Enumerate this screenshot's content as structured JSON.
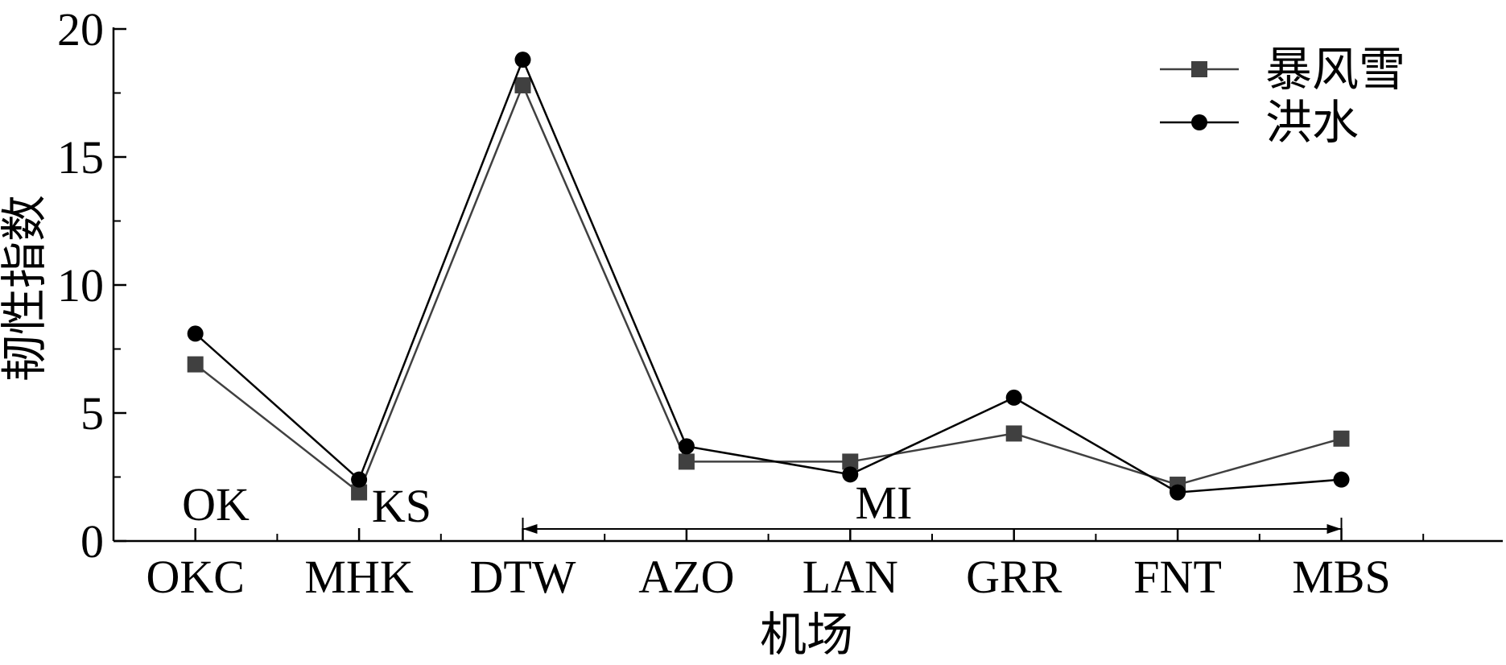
{
  "chart_data": {
    "type": "line",
    "categories": [
      "OKC",
      "MHK",
      "DTW",
      "AZO",
      "LAN",
      "GRR",
      "FNT",
      "MBS"
    ],
    "series": [
      {
        "name": "暴风雪",
        "color": "#404040",
        "marker": "square",
        "values": [
          6.9,
          1.9,
          17.8,
          3.1,
          3.1,
          4.2,
          2.2,
          4.0
        ]
      },
      {
        "name": "洪水",
        "color": "#000000",
        "marker": "circle",
        "values": [
          8.1,
          2.4,
          18.8,
          3.7,
          2.6,
          5.6,
          1.9,
          2.4
        ]
      }
    ],
    "ylim": [
      0,
      20
    ],
    "yticks": [
      0,
      5,
      10,
      15,
      20
    ],
    "xlabel": "机场",
    "ylabel": "韧性指数",
    "annotations": [
      "OK",
      "KS",
      "MI"
    ],
    "legend": "upper right"
  }
}
